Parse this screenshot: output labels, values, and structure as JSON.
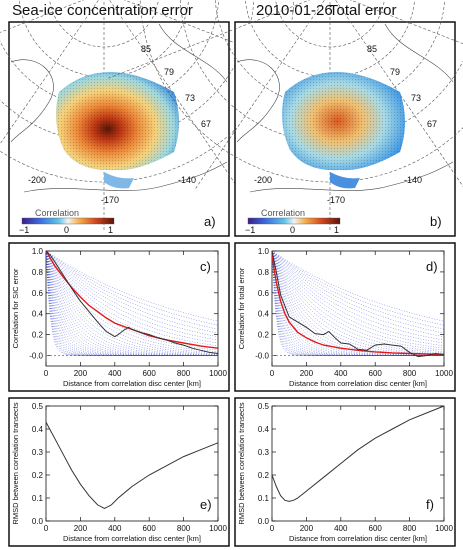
{
  "header": {
    "title_left": "Sea-ice concentration error",
    "date": "2010-01-26",
    "title_right": "Total error"
  },
  "maps": [
    {
      "panel_label": "a)",
      "colorbar_title": "Correlation",
      "colorbar_ticks": [
        "−1",
        "0",
        "1"
      ],
      "lat_labels": [
        "85",
        "79",
        "73",
        "67"
      ],
      "lon_labels": [
        "-200",
        "-170",
        "-140"
      ]
    },
    {
      "panel_label": "b)",
      "colorbar_title": "Correlation",
      "colorbar_ticks": [
        "−1",
        "0",
        "1"
      ],
      "lat_labels": [
        "85",
        "79",
        "73",
        "67"
      ],
      "lon_labels": [
        "-200",
        "-170",
        "-140"
      ]
    }
  ],
  "colors": {
    "series_red": "#e31a1c",
    "series_black": "#333333",
    "envelope_blue": "#3344cc"
  },
  "chart_data": [
    {
      "type": "line",
      "panel_label": "c)",
      "xlabel": "Distance from correlation disc center [km]",
      "ylabel": "Correlation for SIC error",
      "xlim": [
        0,
        1000
      ],
      "ylim": [
        -0.1,
        1.0
      ],
      "xticks": [
        0,
        200,
        400,
        600,
        800,
        1000
      ],
      "yticks": [
        -0.0,
        0.2,
        0.4,
        0.6,
        0.8,
        1.0
      ],
      "ytick_labels": [
        "-0.0",
        "0.2",
        "0.4",
        "0.6",
        "0.8",
        "1.0"
      ],
      "envelope": {
        "count": 34,
        "min_scale_km": 25,
        "max_scale_km": 900
      },
      "series": [
        {
          "color": "red",
          "x": [
            0,
            25,
            50,
            100,
            150,
            200,
            250,
            300,
            350,
            400,
            450,
            500,
            600,
            700,
            800,
            900,
            1000
          ],
          "y": [
            1.0,
            0.93,
            0.86,
            0.75,
            0.65,
            0.56,
            0.48,
            0.42,
            0.36,
            0.31,
            0.28,
            0.25,
            0.19,
            0.15,
            0.12,
            0.09,
            0.07
          ]
        },
        {
          "color": "black",
          "x": [
            0,
            25,
            50,
            100,
            150,
            200,
            250,
            300,
            350,
            400,
            420,
            450,
            480,
            500,
            550,
            600,
            650,
            700,
            750,
            800,
            850,
            900,
            950,
            1000
          ],
          "y": [
            1.0,
            0.96,
            0.9,
            0.77,
            0.64,
            0.52,
            0.42,
            0.32,
            0.23,
            0.18,
            0.2,
            0.24,
            0.27,
            0.25,
            0.22,
            0.2,
            0.17,
            0.15,
            0.12,
            0.1,
            0.07,
            0.05,
            0.03,
            0.02
          ]
        }
      ]
    },
    {
      "type": "line",
      "panel_label": "d)",
      "xlabel": "Distance from correlation disc center [km]",
      "ylabel": "Correlation for total error",
      "xlim": [
        0,
        1000
      ],
      "ylim": [
        -0.1,
        1.0
      ],
      "xticks": [
        0,
        200,
        400,
        600,
        800,
        1000
      ],
      "yticks": [
        -0.0,
        0.2,
        0.4,
        0.6,
        0.8,
        1.0
      ],
      "ytick_labels": [
        "-0.0",
        "0.2",
        "0.4",
        "0.6",
        "0.8",
        "1.0"
      ],
      "envelope": {
        "count": 34,
        "min_scale_km": 25,
        "max_scale_km": 900
      },
      "series": [
        {
          "color": "red",
          "x": [
            0,
            10,
            25,
            50,
            75,
            100,
            150,
            200,
            250,
            300,
            400,
            500,
            600,
            700,
            800,
            900,
            1000
          ],
          "y": [
            1.0,
            0.85,
            0.7,
            0.52,
            0.4,
            0.32,
            0.22,
            0.17,
            0.13,
            0.1,
            0.07,
            0.05,
            0.035,
            0.025,
            0.02,
            0.015,
            0.01
          ]
        },
        {
          "color": "black",
          "x": [
            0,
            25,
            50,
            100,
            150,
            200,
            250,
            300,
            330,
            360,
            400,
            450,
            500,
            550,
            600,
            650,
            700,
            750,
            800,
            850,
            900,
            950,
            1000
          ],
          "y": [
            1.0,
            0.8,
            0.58,
            0.37,
            0.32,
            0.27,
            0.21,
            0.2,
            0.23,
            0.18,
            0.12,
            0.11,
            0.06,
            0.05,
            0.1,
            0.11,
            0.1,
            0.09,
            0.03,
            -0.01,
            0.0,
            0.02,
            0.01
          ]
        }
      ]
    },
    {
      "type": "line",
      "panel_label": "e)",
      "xlabel": "Distance from correlation disc center [km]",
      "ylabel": "RMSD between correlation transects",
      "xlim": [
        0,
        1000
      ],
      "ylim": [
        0.0,
        0.5
      ],
      "xticks": [
        0,
        200,
        400,
        600,
        800,
        1000
      ],
      "yticks": [
        0.0,
        0.1,
        0.2,
        0.3,
        0.4,
        0.5
      ],
      "ytick_labels": [
        "0.0",
        "0.1",
        "0.2",
        "0.3",
        "0.4",
        "0.5"
      ],
      "series": [
        {
          "color": "black",
          "x": [
            0,
            50,
            100,
            150,
            200,
            250,
            300,
            340,
            380,
            420,
            500,
            600,
            700,
            800,
            900,
            1000
          ],
          "y": [
            0.43,
            0.36,
            0.29,
            0.22,
            0.16,
            0.11,
            0.07,
            0.055,
            0.07,
            0.1,
            0.15,
            0.2,
            0.24,
            0.28,
            0.31,
            0.34
          ]
        }
      ]
    },
    {
      "type": "line",
      "panel_label": "f)",
      "xlabel": "Distance from correlation disc center [km]",
      "ylabel": "RMSD between correlation transects",
      "xlim": [
        0,
        1000
      ],
      "ylim": [
        0.0,
        0.5
      ],
      "xticks": [
        0,
        200,
        400,
        600,
        800,
        1000
      ],
      "yticks": [
        0.0,
        0.1,
        0.2,
        0.3,
        0.4,
        0.5
      ],
      "ytick_labels": [
        "0.0",
        "0.1",
        "0.2",
        "0.3",
        "0.4",
        "0.5"
      ],
      "series": [
        {
          "color": "black",
          "x": [
            0,
            25,
            50,
            75,
            100,
            125,
            150,
            200,
            300,
            400,
            500,
            600,
            700,
            800,
            900,
            1000
          ],
          "y": [
            0.2,
            0.15,
            0.11,
            0.09,
            0.085,
            0.09,
            0.1,
            0.13,
            0.19,
            0.25,
            0.31,
            0.36,
            0.4,
            0.44,
            0.47,
            0.5
          ]
        }
      ]
    }
  ]
}
